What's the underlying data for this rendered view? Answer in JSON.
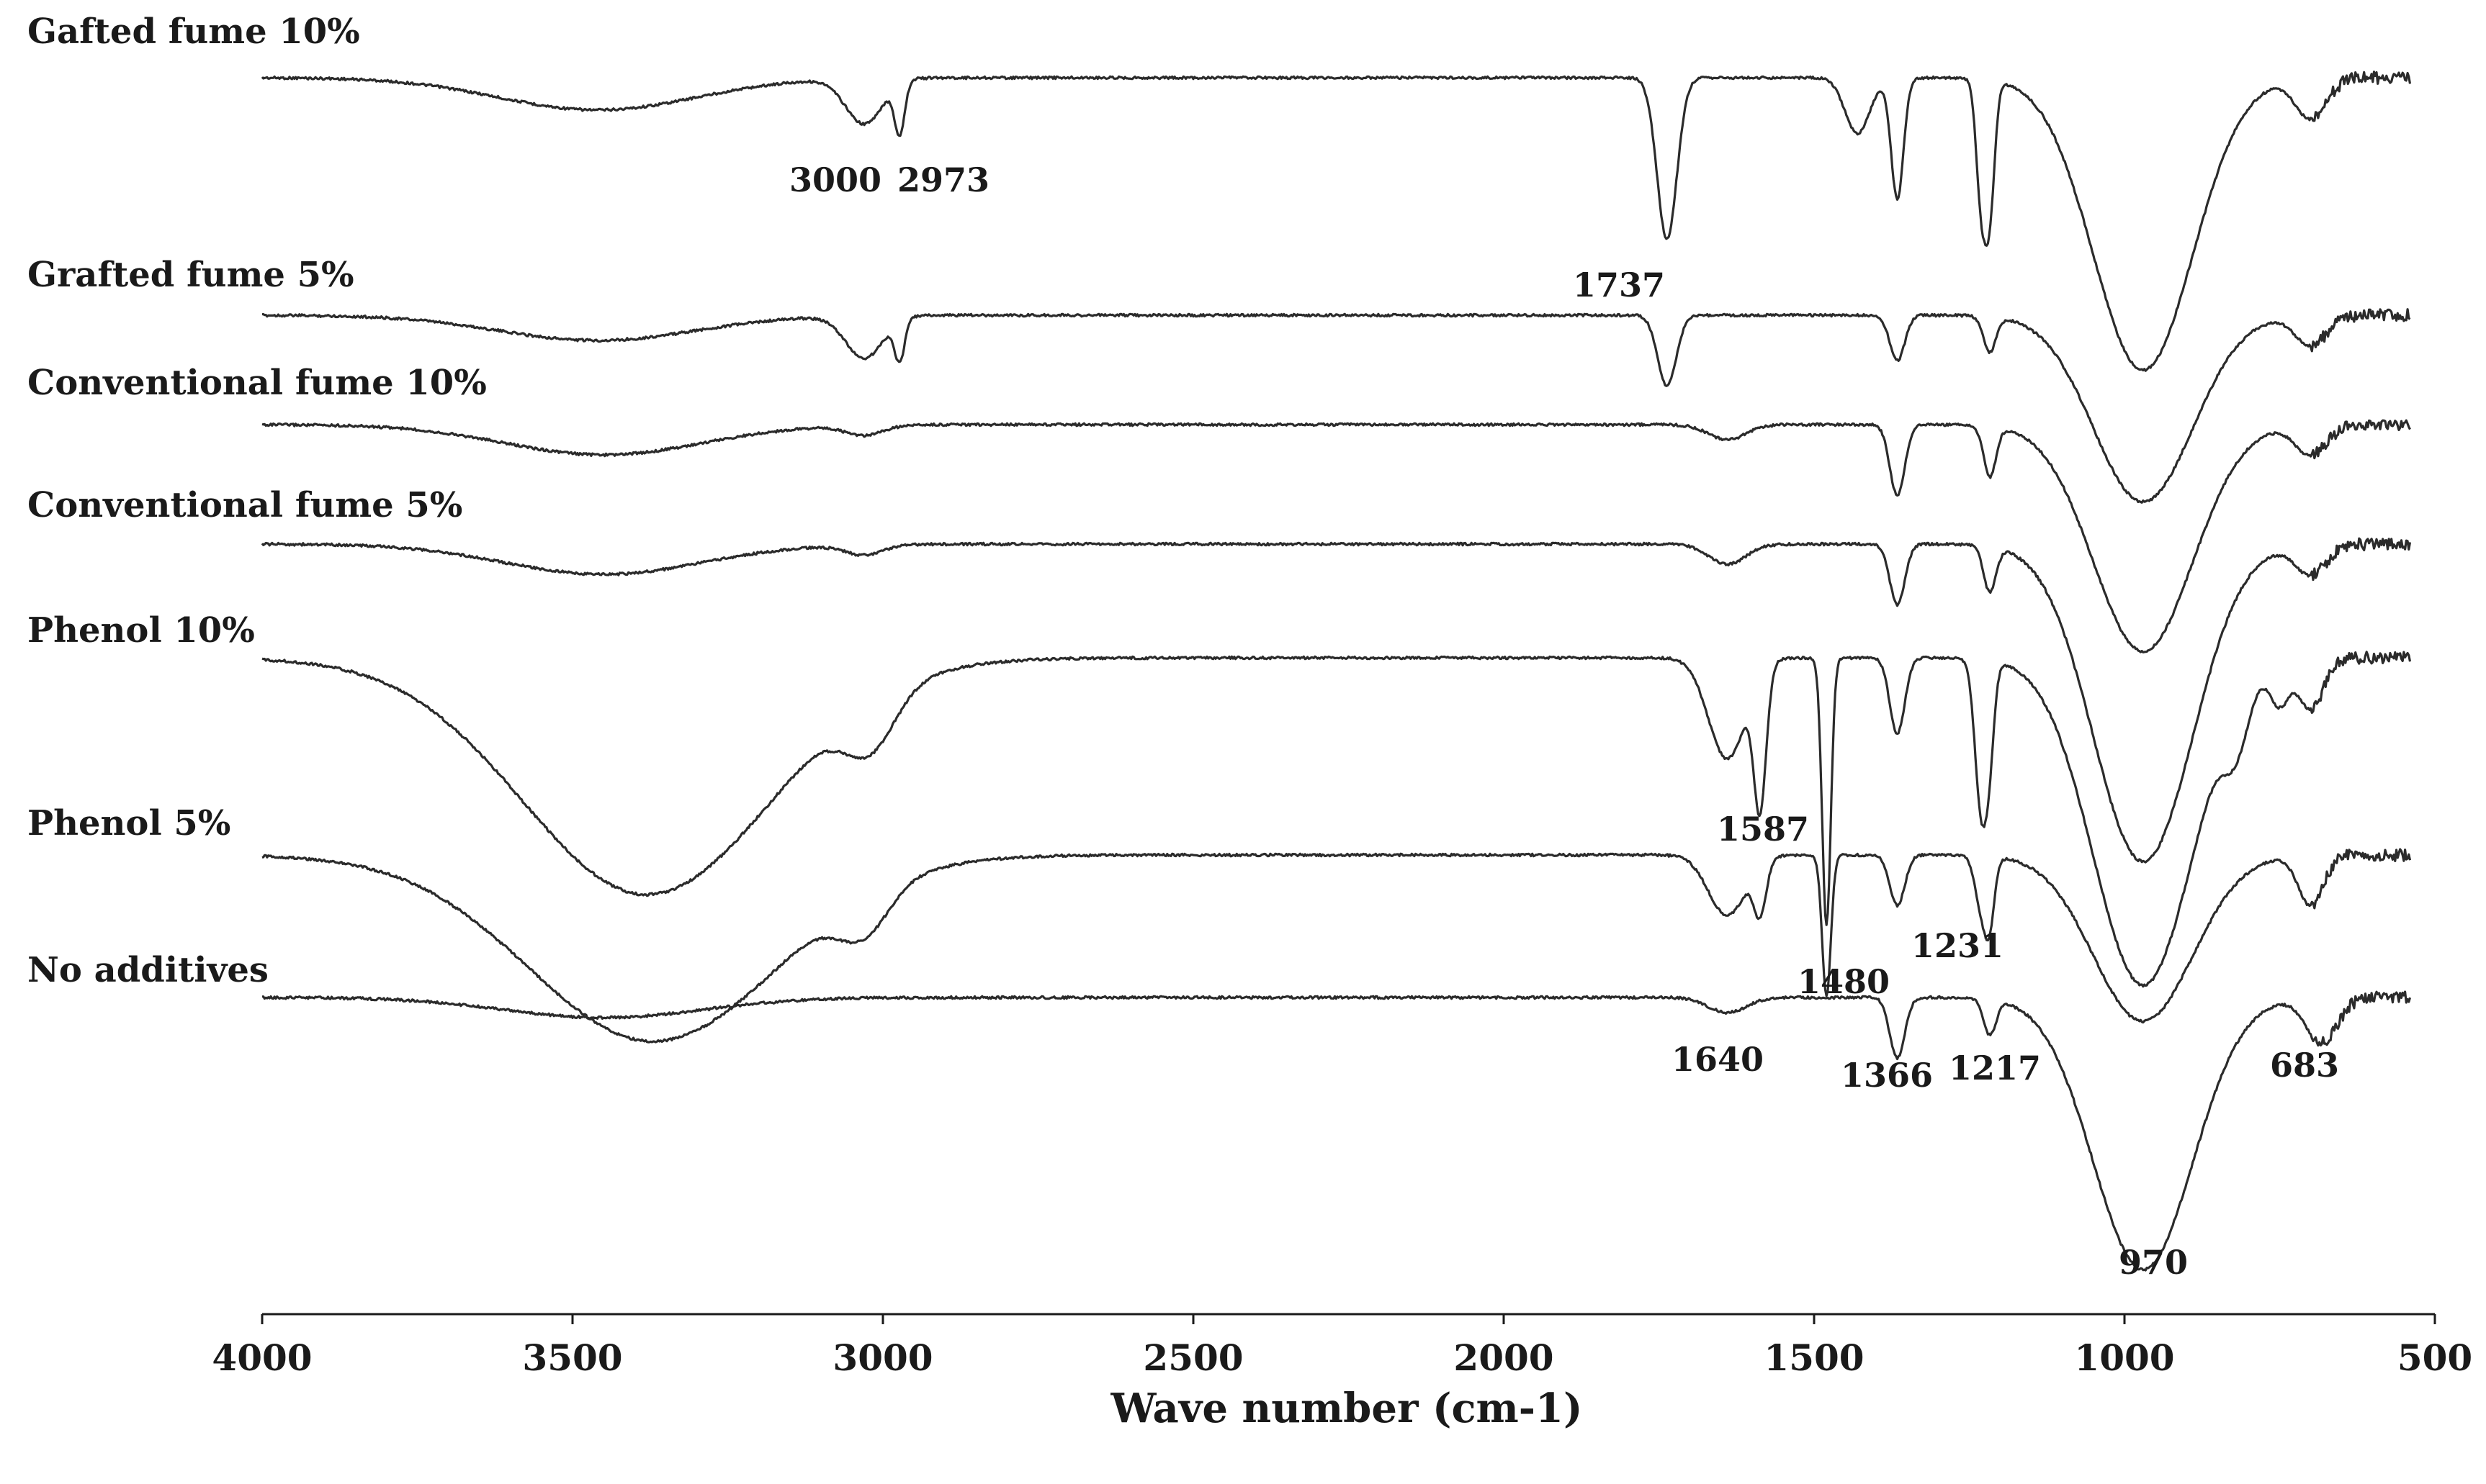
{
  "chart_data": {
    "type": "line",
    "title": "",
    "xlabel": "Wave number (cm-1)",
    "ylabel": "",
    "xlim": [
      4000,
      500
    ],
    "x_direction": "reversed",
    "xticks": [
      4000,
      3500,
      3000,
      2500,
      2000,
      1500,
      1000,
      500
    ],
    "grid": false,
    "series": [
      {
        "name": "Gafted fume 10%",
        "baseline": 0,
        "dips": [
          [
            3460,
            0.32,
            160
          ],
          [
            3030,
            0.45,
            30
          ],
          [
            2973,
            0.5,
            8
          ],
          [
            1737,
            1.6,
            16
          ],
          [
            1430,
            0.55,
            20
          ],
          [
            1366,
            1.2,
            10
          ],
          [
            1231,
            1.15,
            8
          ],
          [
            1217,
            1.25,
            8
          ],
          [
            970,
            2.9,
            80
          ],
          [
            700,
            0.4,
            25
          ]
        ]
      },
      {
        "name": "Grafted fume 5%",
        "baseline": 0,
        "dips": [
          [
            3460,
            0.25,
            160
          ],
          [
            3030,
            0.42,
            30
          ],
          [
            2973,
            0.4,
            8
          ],
          [
            1737,
            0.7,
            15
          ],
          [
            1366,
            0.45,
            12
          ],
          [
            1217,
            0.35,
            10
          ],
          [
            970,
            1.85,
            80
          ],
          [
            700,
            0.3,
            25
          ]
        ]
      },
      {
        "name": "Conventional fume 10%",
        "baseline": 0,
        "dips": [
          [
            3450,
            0.3,
            160
          ],
          [
            3030,
            0.1,
            30
          ],
          [
            1640,
            0.15,
            30
          ],
          [
            1366,
            0.7,
            12
          ],
          [
            1217,
            0.5,
            10
          ],
          [
            970,
            2.25,
            80
          ],
          [
            700,
            0.3,
            25
          ]
        ]
      },
      {
        "name": "Conventional fume 5%",
        "baseline": 0,
        "dips": [
          [
            3450,
            0.3,
            160
          ],
          [
            3030,
            0.1,
            30
          ],
          [
            1640,
            0.2,
            30
          ],
          [
            1366,
            0.6,
            12
          ],
          [
            1217,
            0.45,
            10
          ],
          [
            970,
            3.15,
            80
          ],
          [
            700,
            0.3,
            25
          ]
        ]
      },
      {
        "name": "Phenol 10%",
        "baseline": 0,
        "dips": [
          [
            3380,
            2.35,
            200
          ],
          [
            3020,
            0.5,
            40
          ],
          [
            1640,
            1.0,
            30
          ],
          [
            1587,
            1.35,
            10
          ],
          [
            1480,
            2.65,
            7
          ],
          [
            1366,
            0.75,
            12
          ],
          [
            1231,
            1.45,
            10
          ],
          [
            1217,
            0.7,
            8
          ],
          [
            970,
            3.25,
            80
          ],
          [
            820,
            0.5,
            20
          ],
          [
            750,
            0.4,
            15
          ],
          [
            700,
            0.5,
            20
          ]
        ]
      },
      {
        "name": "Phenol 5%",
        "baseline": 0,
        "dips": [
          [
            3370,
            1.85,
            200
          ],
          [
            3030,
            0.4,
            40
          ],
          [
            1640,
            0.6,
            30
          ],
          [
            1587,
            0.5,
            10
          ],
          [
            1480,
            1.4,
            7
          ],
          [
            1366,
            0.5,
            12
          ],
          [
            1231,
            0.5,
            10
          ],
          [
            1217,
            0.6,
            8
          ],
          [
            970,
            1.65,
            80
          ],
          [
            700,
            0.5,
            20
          ]
        ]
      },
      {
        "name": "No additives",
        "baseline": 0,
        "dips": [
          [
            3450,
            0.2,
            160
          ],
          [
            1640,
            0.15,
            30
          ],
          [
            1366,
            0.6,
            12
          ],
          [
            1217,
            0.35,
            10
          ],
          [
            970,
            2.7,
            80
          ],
          [
            683,
            0.45,
            25
          ]
        ]
      }
    ],
    "peak_annotations": [
      "3000",
      "2973",
      "1737",
      "1587",
      "1480",
      "1231",
      "1640",
      "1366",
      "1217",
      "683",
      "970"
    ]
  }
}
